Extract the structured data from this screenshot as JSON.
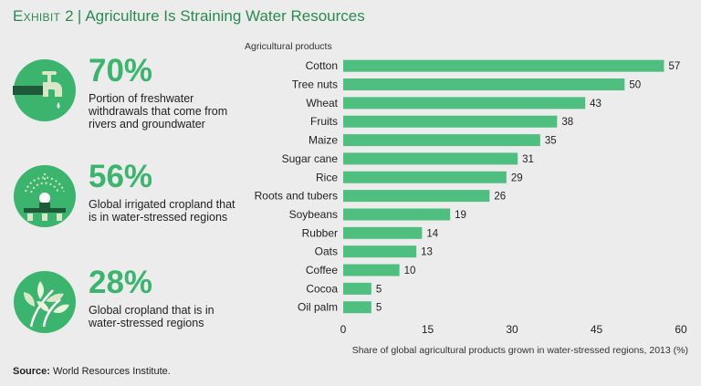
{
  "header": {
    "exhibit_label": "Exhibit 2",
    "separator": "|",
    "title": "Agriculture Is Straining Water Resources"
  },
  "stats": [
    {
      "value": "70%",
      "description": "Portion of freshwater withdrawals that come from rivers and groundwater",
      "icon": "water-faucet-icon"
    },
    {
      "value": "56%",
      "description": "Global irrigated cropland that is in water-stressed regions",
      "icon": "sprinkler-icon"
    },
    {
      "value": "28%",
      "description": "Global cropland that is in water-stressed regions",
      "icon": "leaves-icon"
    }
  ],
  "source": {
    "label": "Source:",
    "text": " World Resources Institute."
  },
  "colors": {
    "accent": "#3bb56e",
    "title": "#2a8a4f",
    "bar": "#4fbf7f",
    "background": "#ececec"
  },
  "chart_data": {
    "type": "bar",
    "orientation": "horizontal",
    "category_axis_label": "Agricultural products",
    "xlabel": "Share of global agricultural products grown in water-stressed regions, 2013 (%)",
    "categories": [
      "Cotton",
      "Tree nuts",
      "Wheat",
      "Fruits",
      "Maize",
      "Sugar cane",
      "Rice",
      "Roots and tubers",
      "Soybeans",
      "Rubber",
      "Oats",
      "Coffee",
      "Cocoa",
      "Oil palm"
    ],
    "values": [
      57,
      50,
      43,
      38,
      35,
      31,
      29,
      26,
      19,
      14,
      13,
      10,
      5,
      5
    ],
    "xlim": [
      0,
      60
    ],
    "xticks": [
      0,
      15,
      30,
      45,
      60
    ],
    "grid": false,
    "data_labels": true
  }
}
